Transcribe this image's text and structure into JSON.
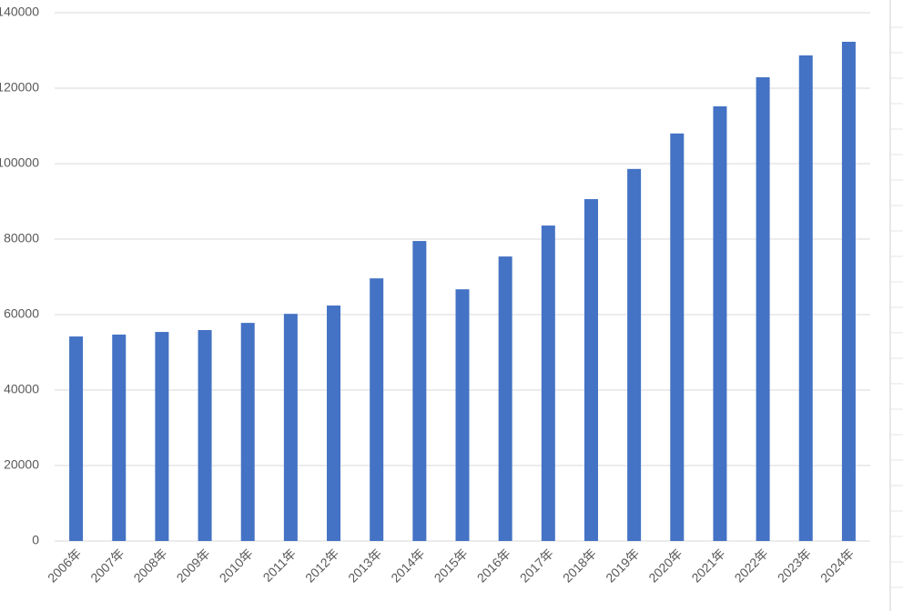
{
  "chart_data": {
    "type": "bar",
    "categories": [
      "2006年",
      "2007年",
      "2008年",
      "2009年",
      "2010年",
      "2011年",
      "2012年",
      "2013年",
      "2014年",
      "2015年",
      "2016年",
      "2017年",
      "2018年",
      "2019年",
      "2020年",
      "2021年",
      "2022年",
      "2023年",
      "2024年"
    ],
    "values": [
      54200,
      54700,
      55400,
      55900,
      57800,
      60200,
      62400,
      69600,
      79500,
      66700,
      75400,
      83600,
      90600,
      98600,
      108000,
      115200,
      122900,
      128700,
      132300
    ],
    "color": "#4472c4",
    "ylim": [
      0,
      140000
    ],
    "yticks": [
      0,
      20000,
      40000,
      60000,
      80000,
      100000,
      120000,
      140000
    ],
    "grid": true
  }
}
